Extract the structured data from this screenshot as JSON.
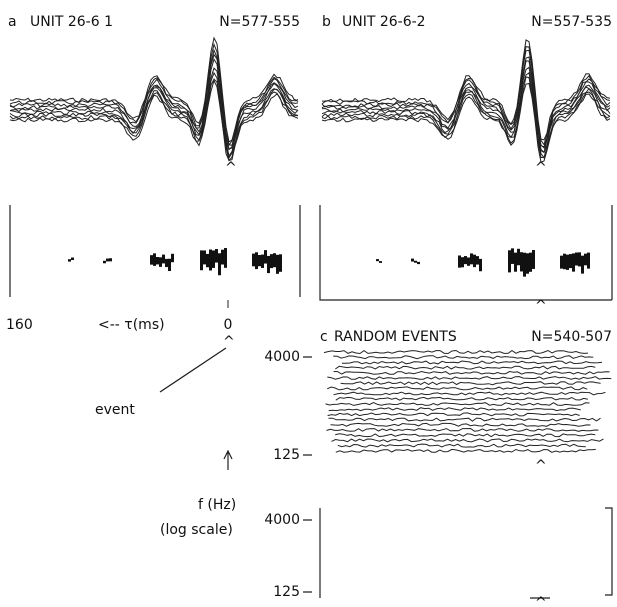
{
  "panels": [
    {
      "label": "a",
      "unit": "UNIT 26-6 1",
      "n": "N=577-555"
    },
    {
      "label": "b",
      "unit": "UNIT 26-6-2",
      "n": "N=557-535"
    },
    {
      "label": "c",
      "title": "RANDOM EVENTS",
      "n": "N=540-507"
    }
  ],
  "time_axis": {
    "left": "160",
    "arrow_label": "<-- τ(ms)",
    "zero": "0"
  },
  "event_label": "event",
  "freq_axis": {
    "label": "f (Hz)",
    "scale": "(log scale)",
    "ticks": [
      "4000",
      "125"
    ]
  }
}
